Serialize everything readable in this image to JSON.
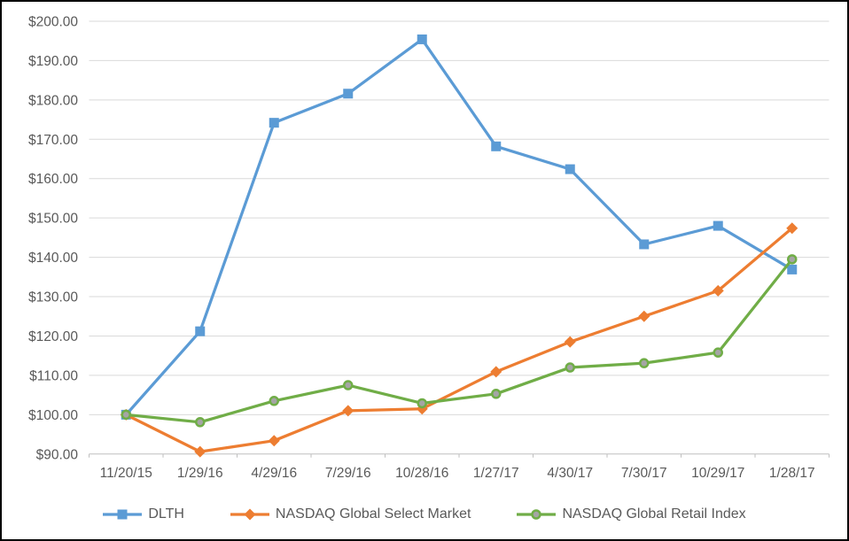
{
  "window": {
    "background_color": "#ffffff",
    "border_color": "#000000"
  },
  "chart_data": {
    "type": "line",
    "title": "",
    "xlabel": "",
    "ylabel": "",
    "categories": [
      "11/20/15",
      "1/29/16",
      "4/29/16",
      "7/29/16",
      "10/28/16",
      "1/27/17",
      "4/30/17",
      "7/30/17",
      "10/29/17",
      "1/28/17"
    ],
    "series": [
      {
        "name": "DLTH",
        "color": "#5B9BD5",
        "marker": "square",
        "marker_fill": "#5B9BD5",
        "values": [
          100.0,
          121.2,
          174.2,
          181.6,
          195.4,
          168.2,
          162.4,
          143.3,
          148.0,
          136.9
        ]
      },
      {
        "name": "NASDAQ Global Select Market",
        "color": "#ED7D31",
        "marker": "diamond",
        "marker_fill": "#ED7D31",
        "values": [
          100.0,
          90.6,
          93.4,
          101.0,
          101.5,
          110.9,
          118.5,
          125.0,
          131.5,
          147.4
        ]
      },
      {
        "name": "NASDAQ Global Retail Index",
        "color": "#70AD47",
        "marker": "circle",
        "marker_fill": "#A5A5A5",
        "values": [
          100.0,
          98.1,
          103.5,
          107.5,
          102.9,
          105.3,
          112.0,
          113.1,
          115.8,
          139.5
        ]
      }
    ],
    "y_axis": {
      "min": 90,
      "max": 200,
      "step": 10,
      "tick_labels": [
        "$200.00",
        "$190.00",
        "$180.00",
        "$170.00",
        "$160.00",
        "$150.00",
        "$140.00",
        "$130.00",
        "$120.00",
        "$110.00",
        "$100.00",
        "$90.00"
      ]
    },
    "grid": true,
    "legend_position": "bottom",
    "gridline_color": "#D9D9D9",
    "axis_line_color": "#BFBFBF",
    "text_color": "#595959"
  }
}
